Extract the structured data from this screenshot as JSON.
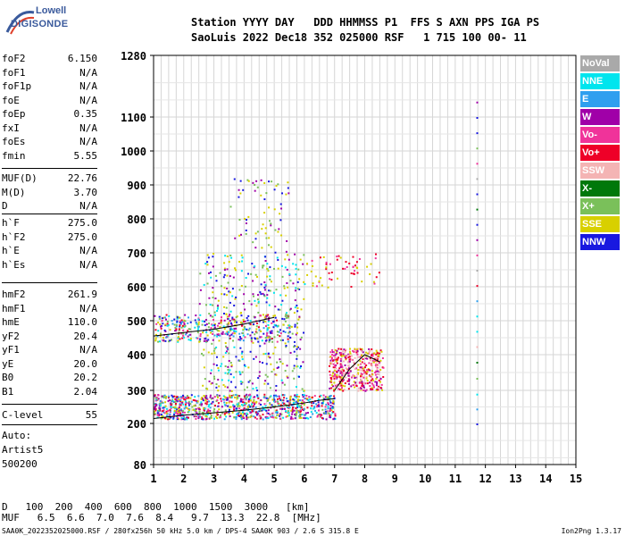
{
  "logo": {
    "top": "Lowell",
    "bottom": "DIGISONDE"
  },
  "header": {
    "line1": "Station YYYY DAY   DDD HHMMSS P1  FFS S AXN PPS IGA PS",
    "line2": "SaoLuis 2022 Dec18 352 025000 RSF   1 715 100 00- 11"
  },
  "params_group1": [
    {
      "name": "foF2",
      "value": "6.150"
    },
    {
      "name": "foF1",
      "value": "N/A"
    },
    {
      "name": "foF1p",
      "value": "N/A"
    },
    {
      "name": "foE",
      "value": "N/A"
    },
    {
      "name": "foEp",
      "value": "0.35"
    },
    {
      "name": "fxI",
      "value": "N/A"
    },
    {
      "name": "foEs",
      "value": "N/A"
    },
    {
      "name": "fmin",
      "value": "5.55"
    }
  ],
  "params_group2": [
    {
      "name": "MUF(D)",
      "value": "22.76"
    },
    {
      "name": "M(D)",
      "value": "3.70"
    },
    {
      "name": "D",
      "value": "N/A"
    }
  ],
  "params_group3": [
    {
      "name": "h`F",
      "value": "275.0"
    },
    {
      "name": "h`F2",
      "value": "275.0"
    },
    {
      "name": "h`E",
      "value": "N/A"
    },
    {
      "name": "h`Es",
      "value": "N/A"
    }
  ],
  "params_group4": [
    {
      "name": "hmF2",
      "value": "261.9"
    },
    {
      "name": "hmF1",
      "value": "N/A"
    },
    {
      "name": "hmE",
      "value": "110.0"
    },
    {
      "name": "yF2",
      "value": "20.4"
    },
    {
      "name": "yF1",
      "value": "N/A"
    },
    {
      "name": "yE",
      "value": "20.0"
    },
    {
      "name": "B0",
      "value": "20.2"
    },
    {
      "name": "B1",
      "value": "2.04"
    }
  ],
  "clevel": {
    "name": "C-level",
    "value": "55"
  },
  "auto_lines": [
    "Auto:",
    "Artist5",
    "500200"
  ],
  "legend": [
    {
      "label": "NoVal",
      "color": "#a9a9a9"
    },
    {
      "label": "NNE",
      "color": "#00e5ee"
    },
    {
      "label": "E",
      "color": "#2f9fef"
    },
    {
      "label": "W",
      "color": "#a000a8"
    },
    {
      "label": "Vo-",
      "color": "#f0339a"
    },
    {
      "label": "Vo+",
      "color": "#ee0028"
    },
    {
      "label": "SSW",
      "color": "#f4b4b4"
    },
    {
      "label": "X-",
      "color": "#00780a"
    },
    {
      "label": "X+",
      "color": "#7ac05a"
    },
    {
      "label": "SSE",
      "color": "#d8d000"
    },
    {
      "label": "NNW",
      "color": "#1818e0"
    }
  ],
  "muf_table": {
    "d_label": "D",
    "d_values": [
      "100",
      "200",
      "400",
      "600",
      "800",
      "1000",
      "1500",
      "3000",
      "[km]"
    ],
    "muf_label": "MUF",
    "muf_values": [
      "6.5",
      "6.6",
      "7.0",
      "7.6",
      "8.4",
      "9.7",
      "13.3",
      "22.8",
      "[MHz]"
    ]
  },
  "footer": {
    "left": "SAA0K_2022352025000.RSF / 280fx256h 50 kHz 5.0 km / DPS-4 SAA0K 903 / 2.6 S 315.8 E",
    "right": "Ion2Png 1.3.17"
  },
  "chart_data": {
    "type": "scatter",
    "x_ticks": [
      "1",
      "2",
      "3",
      "4",
      "5",
      "6",
      "7",
      "8",
      "9",
      "10",
      "11",
      "12",
      "13",
      "14",
      "15"
    ],
    "y_ticks": [
      "80",
      "200",
      "300",
      "400",
      "500",
      "600",
      "700",
      "800",
      "900",
      "1000",
      "1100",
      "1280"
    ],
    "xlim": [
      1,
      15
    ],
    "ylim": [
      80,
      1280
    ],
    "y_scale": "nonlinear (height, ionogram)",
    "grid": true,
    "legend_placement": "right",
    "traces": [
      {
        "name": "F-trace",
        "x": [
          1.0,
          2.0,
          3.0,
          4.0,
          5.0,
          6.0,
          6.5,
          7.0
        ],
        "y": [
          215,
          225,
          232,
          240,
          250,
          262,
          270,
          275
        ]
      },
      {
        "name": "F-second-hop",
        "x": [
          1.0,
          2.0,
          3.0,
          4.0,
          5.0
        ],
        "y": [
          455,
          465,
          475,
          490,
          510
        ]
      },
      {
        "name": "oblique-cluster",
        "x": [
          7.0,
          7.5,
          8.0,
          8.5
        ],
        "y": [
          300,
          360,
          400,
          380
        ]
      }
    ]
  }
}
